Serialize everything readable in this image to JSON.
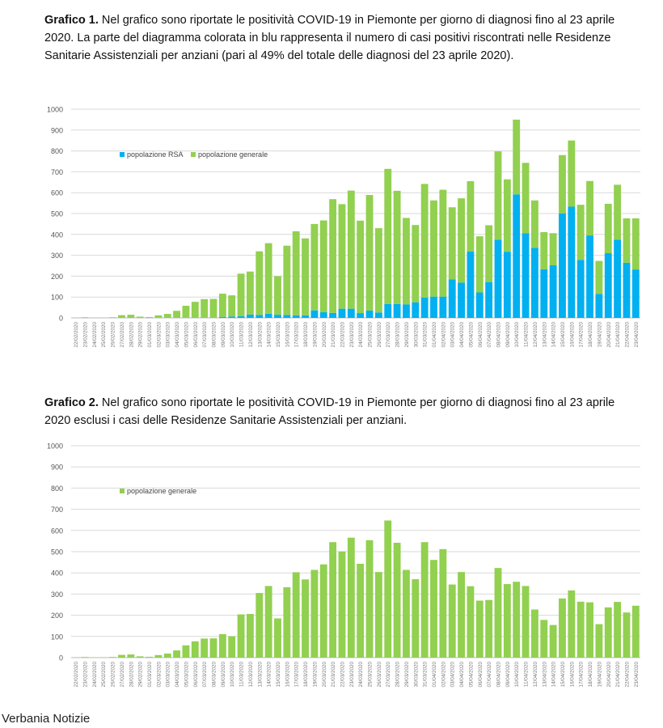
{
  "captions": [
    {
      "bold": "Grafico 1.",
      "text": " Nel grafico sono riportate le positività COVID-19 in Piemonte per giorno di diagnosi fino al 23 aprile 2020. La parte del diagramma colorata in blu rappresenta il numero di casi positivi riscontrati nelle Residenze Sanitarie Assistenziali per anziani (pari al 49% del totale delle diagnosi del 23 aprile 2020)."
    },
    {
      "bold": "Grafico 2.",
      "text": " Nel grafico sono riportate le positività COVID-19 in Piemonte per giorno di diagnosi fino al 23 aprile 2020 esclusi i casi delle Residenze Sanitarie Assistenziali per anziani."
    }
  ],
  "footer": "Verbania Notizie",
  "colors": {
    "rsa": "#00B0F0",
    "generale": "#92D050",
    "grid": "#D9D9D9"
  },
  "chart_data": [
    {
      "type": "bar",
      "stacked": true,
      "title": "",
      "ylim": [
        0,
        1000
      ],
      "yticks": [
        "0",
        "100",
        "200",
        "300",
        "400",
        "500",
        "600",
        "700",
        "800",
        "900",
        "1000"
      ],
      "legend": "top-left",
      "categories": [
        "22/02/2020",
        "23/02/2020",
        "24/02/2020",
        "25/02/2020",
        "26/02/2020",
        "27/02/2020",
        "28/02/2020",
        "29/02/2020",
        "01/03/2020",
        "02/03/2020",
        "03/03/2020",
        "04/03/2020",
        "05/03/2020",
        "06/03/2020",
        "07/03/2020",
        "08/03/2020",
        "09/03/2020",
        "10/03/2020",
        "11/03/2020",
        "12/03/2020",
        "13/03/2020",
        "14/03/2020",
        "15/03/2020",
        "16/03/2020",
        "17/03/2020",
        "18/03/2020",
        "19/03/2020",
        "20/03/2020",
        "21/03/2020",
        "22/03/2020",
        "23/03/2020",
        "24/03/2020",
        "25/03/2020",
        "26/03/2020",
        "27/03/2020",
        "28/03/2020",
        "29/03/2020",
        "30/03/2020",
        "31/03/2020",
        "01/04/2020",
        "02/04/2020",
        "03/04/2020",
        "04/04/2020",
        "05/04/2020",
        "06/04/2020",
        "07/04/2020",
        "08/04/2020",
        "09/04/2020",
        "10/04/2020",
        "11/04/2020",
        "12/04/2020",
        "13/04/2020",
        "14/04/2020",
        "15/04/2020",
        "16/04/2020",
        "17/04/2020",
        "18/04/2020",
        "19/04/2020",
        "20/04/2020",
        "21/04/2020",
        "22/04/2020",
        "23/04/2020"
      ],
      "series": [
        {
          "name": "popolazione RSA",
          "values": [
            0,
            0,
            0,
            0,
            0,
            0,
            0,
            0,
            0,
            0,
            0,
            0,
            0,
            0,
            0,
            0,
            5,
            7,
            8,
            16,
            14,
            20,
            15,
            14,
            12,
            12,
            36,
            27,
            24,
            44,
            44,
            23,
            35,
            26,
            67,
            67,
            65,
            75,
            97,
            102,
            102,
            185,
            169,
            318,
            122,
            172,
            375,
            317,
            592,
            405,
            336,
            233,
            252,
            501,
            533,
            278,
            395,
            115,
            310,
            375,
            264,
            232
          ]
        },
        {
          "name": "popolazione generale",
          "values": [
            1,
            3,
            1,
            1,
            3,
            13,
            15,
            6,
            4,
            12,
            19,
            34,
            58,
            77,
            90,
            91,
            111,
            101,
            204,
            206,
            305,
            338,
            185,
            332,
            403,
            369,
            414,
            440,
            545,
            501,
            566,
            443,
            554,
            404,
            647,
            542,
            414,
            370,
            545,
            461,
            512,
            345,
            404,
            337,
            269,
            272,
            423,
            347,
            358,
            338,
            227,
            178,
            154,
            279,
            317,
            264,
            261,
            158,
            237,
            263,
            213,
            245
          ]
        }
      ]
    },
    {
      "type": "bar",
      "title": "",
      "ylim": [
        0,
        1000
      ],
      "yticks": [
        "0",
        "100",
        "200",
        "300",
        "400",
        "500",
        "600",
        "700",
        "800",
        "900",
        "1000"
      ],
      "legend": "top-left",
      "categories_ref": "same as chart 1",
      "series": [
        {
          "name": "popolazione generale",
          "values": [
            1,
            3,
            1,
            1,
            3,
            13,
            15,
            6,
            4,
            12,
            19,
            34,
            58,
            77,
            90,
            91,
            111,
            101,
            204,
            206,
            305,
            338,
            185,
            332,
            403,
            369,
            414,
            440,
            545,
            501,
            566,
            443,
            554,
            404,
            647,
            542,
            414,
            370,
            545,
            461,
            512,
            345,
            404,
            337,
            269,
            272,
            423,
            347,
            358,
            338,
            227,
            178,
            154,
            279,
            317,
            264,
            261,
            158,
            237,
            263,
            213,
            245
          ]
        }
      ]
    }
  ]
}
